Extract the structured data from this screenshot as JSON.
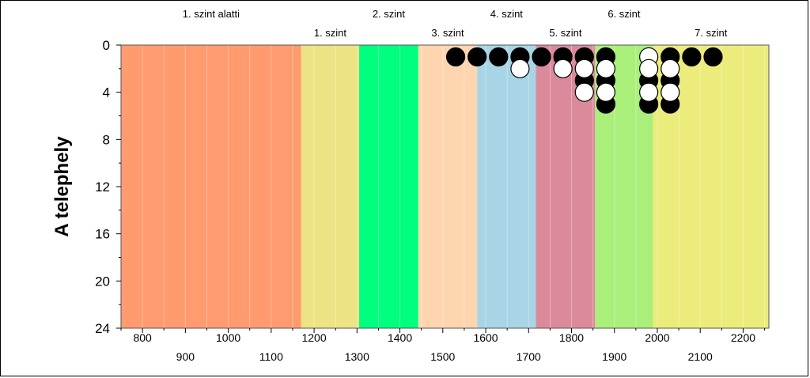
{
  "chart_data": {
    "type": "scatter",
    "title": "",
    "xlabel": "",
    "ylabel": "A telephely",
    "xlim": [
      750,
      2260
    ],
    "ylim": [
      0,
      24
    ],
    "y_inverted": true,
    "grid": "vertical",
    "x_ticks_row1": [
      800,
      1000,
      1200,
      1400,
      1600,
      1800,
      2000,
      2200
    ],
    "x_ticks_row2": [
      900,
      1100,
      1300,
      1500,
      1700,
      1900,
      2100
    ],
    "y_ticks": [
      0,
      4,
      8,
      12,
      16,
      20,
      24
    ],
    "bands": [
      {
        "label": "1. szint alatti",
        "from": 750,
        "to": 1170,
        "color": "#FF9B6E",
        "label_row": "top"
      },
      {
        "label": "1. szint",
        "from": 1170,
        "to": 1305,
        "color": "#EDE384",
        "label_row": "bottom"
      },
      {
        "label": "2. szint",
        "from": 1305,
        "to": 1443,
        "color": "#00FF7F",
        "label_row": "top"
      },
      {
        "label": "3. szint",
        "from": 1443,
        "to": 1580,
        "color": "#FFD5B0",
        "label_row": "bottom"
      },
      {
        "label": "4. szint",
        "from": 1580,
        "to": 1717,
        "color": "#A8D5E5",
        "label_row": "top"
      },
      {
        "label": "5. szint",
        "from": 1717,
        "to": 1855,
        "color": "#DB8A9C",
        "label_row": "bottom"
      },
      {
        "label": "6. szint",
        "from": 1855,
        "to": 1990,
        "color": "#A9EF7A",
        "label_row": "top"
      },
      {
        "label": "7. szint",
        "from": 1990,
        "to": 2260,
        "color": "#EBEC7C",
        "label_row": "bottom"
      }
    ],
    "series": [
      {
        "fill": "#000000",
        "points": [
          {
            "x": 1530,
            "y": 1
          },
          {
            "x": 1580,
            "y": 1
          },
          {
            "x": 1630,
            "y": 1
          },
          {
            "x": 1680,
            "y": 1
          },
          {
            "x": 1730,
            "y": 1
          },
          {
            "x": 1780,
            "y": 1
          },
          {
            "x": 1830,
            "y": 1
          },
          {
            "x": 1830,
            "y": 3
          },
          {
            "x": 1880,
            "y": 1
          },
          {
            "x": 1880,
            "y": 3
          },
          {
            "x": 1880,
            "y": 5
          },
          {
            "x": 1980,
            "y": 3
          },
          {
            "x": 1980,
            "y": 5
          },
          {
            "x": 2030,
            "y": 1
          },
          {
            "x": 2030,
            "y": 3
          },
          {
            "x": 2030,
            "y": 5
          },
          {
            "x": 2080,
            "y": 1
          },
          {
            "x": 2130,
            "y": 1
          }
        ]
      },
      {
        "fill": "#FFFFFF",
        "points": [
          {
            "x": 1680,
            "y": 2
          },
          {
            "x": 1780,
            "y": 2
          },
          {
            "x": 1830,
            "y": 2
          },
          {
            "x": 1830,
            "y": 4
          },
          {
            "x": 1880,
            "y": 2
          },
          {
            "x": 1880,
            "y": 4
          },
          {
            "x": 1980,
            "y": 1
          },
          {
            "x": 1980,
            "y": 2
          },
          {
            "x": 1980,
            "y": 4
          },
          {
            "x": 2030,
            "y": 2
          },
          {
            "x": 2030,
            "y": 4
          }
        ]
      }
    ]
  }
}
